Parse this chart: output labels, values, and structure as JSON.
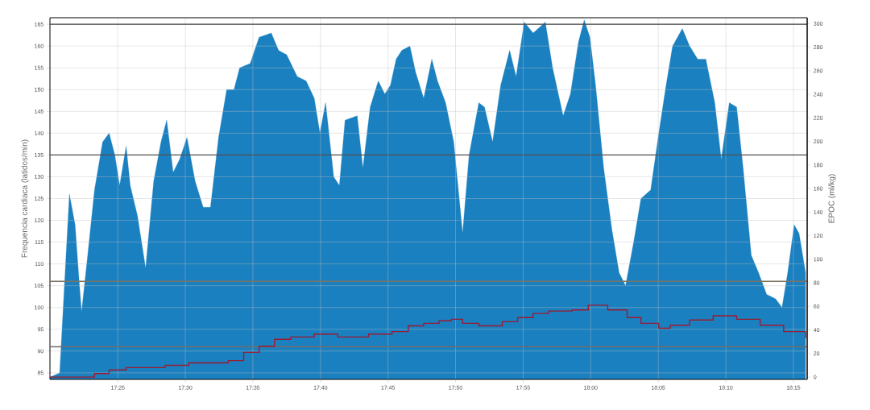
{
  "chart_data": {
    "type": "area",
    "ylabel": "Frequencia cardiaca (latidos/min)",
    "y2label": "EPOC (ml/kg)",
    "xlim": [
      17.333,
      18.267
    ],
    "ylim": [
      83.5,
      166.5
    ],
    "y2lim": [
      -2,
      305
    ],
    "xticks": [
      {
        "value": 17.4167,
        "label": "17:25"
      },
      {
        "value": 17.5,
        "label": "17:30"
      },
      {
        "value": 17.5833,
        "label": "17:35"
      },
      {
        "value": 17.6667,
        "label": "17:40"
      },
      {
        "value": 17.75,
        "label": "17:45"
      },
      {
        "value": 17.8333,
        "label": "17:50"
      },
      {
        "value": 17.9167,
        "label": "17:55"
      },
      {
        "value": 18,
        "label": "18:00"
      },
      {
        "value": 18.0833,
        "label": "18:05"
      },
      {
        "value": 18.1667,
        "label": "18:10"
      },
      {
        "value": 18.25,
        "label": "18:15"
      }
    ],
    "yticks": [
      85,
      90,
      95,
      100,
      105,
      110,
      115,
      120,
      125,
      130,
      135,
      140,
      145,
      150,
      155,
      160,
      165
    ],
    "y2ticks": [
      0,
      20,
      40,
      60,
      80,
      100,
      120,
      140,
      160,
      180,
      200,
      220,
      240,
      260,
      280,
      300
    ],
    "grid": true,
    "ref_lines": [
      {
        "axis": "y",
        "value": 165,
        "color": "#404040"
      },
      {
        "axis": "y",
        "value": 135,
        "color": "#505050"
      },
      {
        "axis": "y",
        "value": 106,
        "color": "#7a7464"
      },
      {
        "axis": "y",
        "value": 91,
        "color": "#6e6e6e"
      }
    ],
    "series": [
      {
        "type": "area",
        "color": "#1a80c0",
        "x": [
          17.333,
          17.345,
          17.357,
          17.364,
          17.369,
          17.372,
          17.379,
          17.388,
          17.398,
          17.406,
          17.413,
          17.419,
          17.427,
          17.432,
          17.441,
          17.451,
          17.461,
          17.47,
          17.477,
          17.485,
          17.493,
          17.502,
          17.512,
          17.522,
          17.531,
          17.541,
          17.551,
          17.56,
          17.567,
          17.58,
          17.591,
          17.606,
          17.615,
          17.625,
          17.638,
          17.649,
          17.659,
          17.666,
          17.673,
          17.683,
          17.69,
          17.697,
          17.712,
          17.719,
          17.728,
          17.738,
          17.746,
          17.753,
          17.76,
          17.767,
          17.777,
          17.784,
          17.794,
          17.804,
          17.811,
          17.821,
          17.831,
          17.842,
          17.85,
          17.862,
          17.869,
          17.879,
          17.889,
          17.9,
          17.908,
          17.918,
          17.929,
          17.944,
          17.953,
          17.966,
          17.975,
          17.985,
          17.992,
          17.999,
          18.006,
          18.016,
          18.026,
          18.035,
          18.043,
          18.053,
          18.062,
          18.074,
          18.084,
          18.093,
          18.101,
          18.113,
          18.122,
          18.132,
          18.142,
          18.153,
          18.161,
          18.171,
          18.18,
          18.188,
          18.198,
          18.207,
          18.217,
          18.228,
          18.236,
          18.243,
          18.251,
          18.257,
          18.265
        ],
        "values": [
          84,
          85,
          126,
          119,
          106,
          99,
          111,
          127,
          138,
          140,
          135,
          128,
          137,
          128,
          121,
          109,
          129,
          138,
          143,
          131,
          134,
          139,
          129,
          123,
          123,
          139,
          150,
          150,
          155,
          156,
          162,
          163,
          159,
          158,
          153,
          152,
          148,
          140,
          147,
          130,
          128,
          143,
          144,
          132,
          146,
          152,
          149,
          151,
          157,
          159,
          160,
          154,
          148,
          157,
          152,
          147,
          138,
          117,
          135,
          147,
          146,
          138,
          151,
          159,
          153,
          165.5,
          163,
          165.5,
          155,
          144,
          149,
          161,
          166,
          162,
          151,
          132,
          118,
          108,
          105,
          115,
          125,
          127,
          140,
          151,
          160,
          164,
          160,
          157,
          157,
          147,
          134,
          147,
          146,
          132,
          112,
          108,
          103,
          102,
          100,
          108,
          119,
          117,
          108
        ]
      },
      {
        "type": "step",
        "axis": "y2",
        "color": "#9b1b30",
        "x": [
          17.333,
          17.388,
          17.406,
          17.427,
          17.475,
          17.504,
          17.553,
          17.572,
          17.591,
          17.61,
          17.63,
          17.659,
          17.688,
          17.726,
          17.755,
          17.775,
          17.794,
          17.813,
          17.828,
          17.842,
          17.862,
          17.891,
          17.91,
          17.929,
          17.948,
          17.977,
          17.997,
          18.011,
          18.021,
          18.045,
          18.062,
          18.084,
          18.098,
          18.122,
          18.151,
          18.18,
          18.209,
          18.238,
          18.265
        ],
        "values": [
          0,
          3,
          6,
          8,
          10,
          12,
          14,
          21,
          26,
          32,
          34,
          36.5,
          34,
          36.5,
          38.6,
          43.5,
          45.6,
          47.7,
          49,
          45.6,
          43.5,
          47,
          50.5,
          54,
          56,
          57,
          61,
          61,
          57,
          50.5,
          45.6,
          41.4,
          44,
          48.4,
          52,
          49,
          44,
          38.6,
          33
        ]
      }
    ]
  }
}
